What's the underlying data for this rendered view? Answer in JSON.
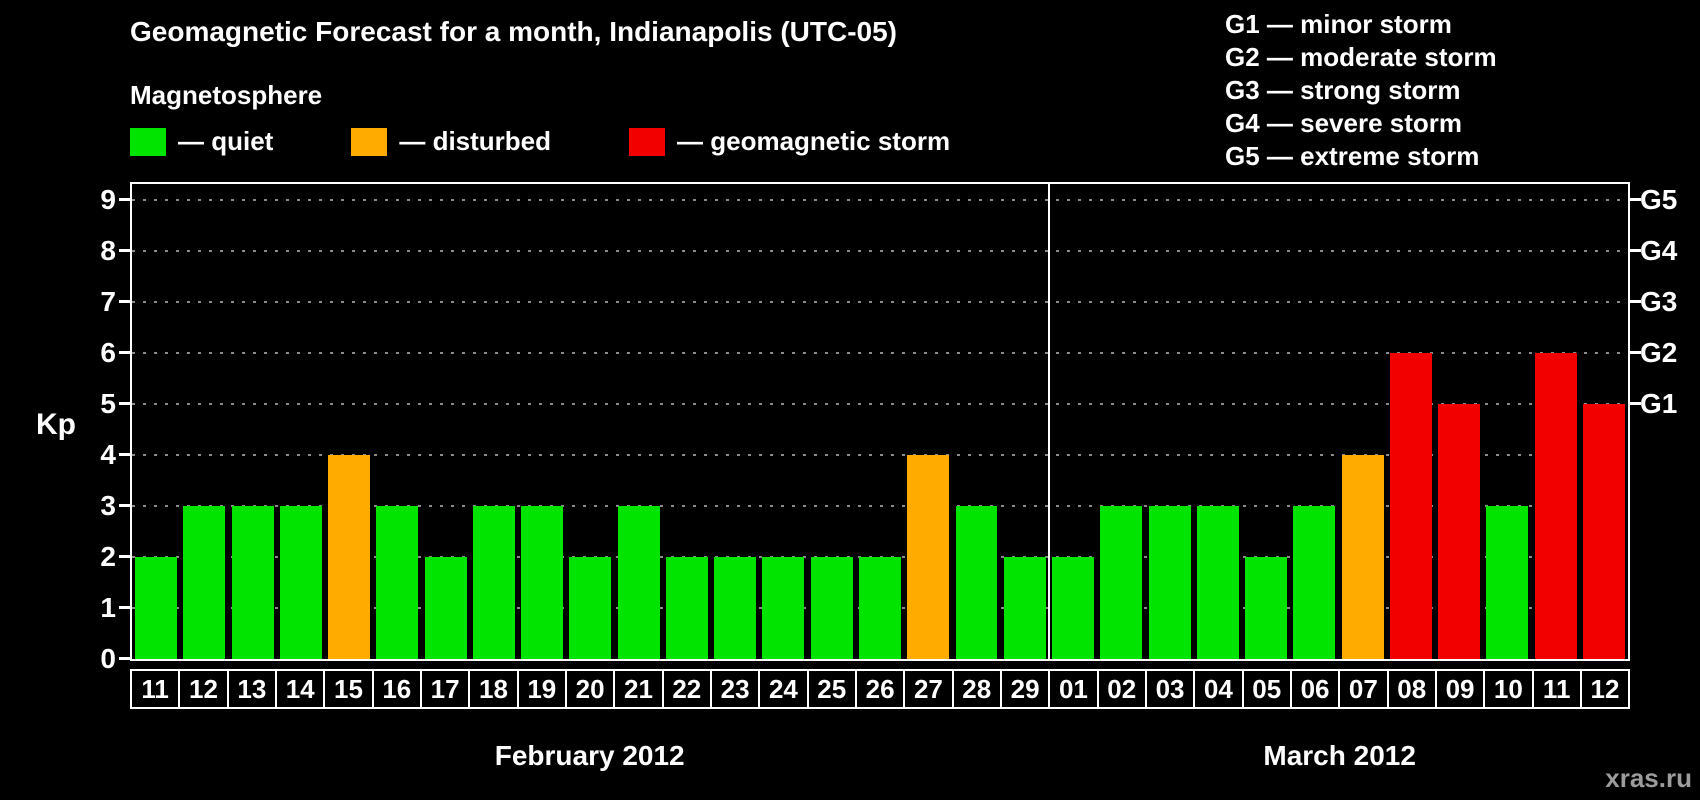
{
  "title": "Geomagnetic Forecast for a month, Indianapolis (UTC-05)",
  "subtitle": "Magnetosphere",
  "legend": {
    "items": [
      {
        "status": "quiet",
        "label": "— quiet",
        "color": "#00e400"
      },
      {
        "status": "disturbed",
        "label": "— disturbed",
        "color": "#ffab00"
      },
      {
        "status": "storm",
        "label": "— geomagnetic storm",
        "color": "#f20000"
      }
    ]
  },
  "g_legend": [
    "G1 — minor storm",
    "G2 — moderate storm",
    "G3 — strong storm",
    "G4 — severe storm",
    "G5 — extreme storm"
  ],
  "watermark": "xras.ru",
  "chart_data": {
    "type": "bar",
    "title": "Geomagnetic Forecast for a month, Indianapolis (UTC-05)",
    "ylabel": "Kp",
    "xlabel": "",
    "ylim": [
      0,
      9
    ],
    "yticks": [
      0,
      1,
      2,
      3,
      4,
      5,
      6,
      7,
      8,
      9
    ],
    "grid": true,
    "legend_position": "top",
    "status_colors": {
      "quiet": "#00e400",
      "disturbed": "#ffab00",
      "storm": "#f20000"
    },
    "right_axis_ticks": [
      {
        "label": "G1",
        "value": 5
      },
      {
        "label": "G2",
        "value": 6
      },
      {
        "label": "G3",
        "value": 7
      },
      {
        "label": "G4",
        "value": 8
      },
      {
        "label": "G5",
        "value": 9
      }
    ],
    "months": [
      {
        "label": "February 2012",
        "days": [
          {
            "day": "11",
            "kp": 2,
            "status": "quiet"
          },
          {
            "day": "12",
            "kp": 3,
            "status": "quiet"
          },
          {
            "day": "13",
            "kp": 3,
            "status": "quiet"
          },
          {
            "day": "14",
            "kp": 3,
            "status": "quiet"
          },
          {
            "day": "15",
            "kp": 4,
            "status": "disturbed"
          },
          {
            "day": "16",
            "kp": 3,
            "status": "quiet"
          },
          {
            "day": "17",
            "kp": 2,
            "status": "quiet"
          },
          {
            "day": "18",
            "kp": 3,
            "status": "quiet"
          },
          {
            "day": "19",
            "kp": 3,
            "status": "quiet"
          },
          {
            "day": "20",
            "kp": 2,
            "status": "quiet"
          },
          {
            "day": "21",
            "kp": 3,
            "status": "quiet"
          },
          {
            "day": "22",
            "kp": 2,
            "status": "quiet"
          },
          {
            "day": "23",
            "kp": 2,
            "status": "quiet"
          },
          {
            "day": "24",
            "kp": 2,
            "status": "quiet"
          },
          {
            "day": "25",
            "kp": 2,
            "status": "quiet"
          },
          {
            "day": "26",
            "kp": 2,
            "status": "quiet"
          },
          {
            "day": "27",
            "kp": 4,
            "status": "disturbed"
          },
          {
            "day": "28",
            "kp": 3,
            "status": "quiet"
          },
          {
            "day": "29",
            "kp": 2,
            "status": "quiet"
          }
        ]
      },
      {
        "label": "March 2012",
        "days": [
          {
            "day": "01",
            "kp": 2,
            "status": "quiet"
          },
          {
            "day": "02",
            "kp": 3,
            "status": "quiet"
          },
          {
            "day": "03",
            "kp": 3,
            "status": "quiet"
          },
          {
            "day": "04",
            "kp": 3,
            "status": "quiet"
          },
          {
            "day": "05",
            "kp": 2,
            "status": "quiet"
          },
          {
            "day": "06",
            "kp": 3,
            "status": "quiet"
          },
          {
            "day": "07",
            "kp": 4,
            "status": "disturbed"
          },
          {
            "day": "08",
            "kp": 6,
            "status": "storm"
          },
          {
            "day": "09",
            "kp": 5,
            "status": "storm"
          },
          {
            "day": "10",
            "kp": 3,
            "status": "quiet"
          },
          {
            "day": "11",
            "kp": 6,
            "status": "storm"
          },
          {
            "day": "12",
            "kp": 5,
            "status": "storm"
          }
        ]
      }
    ]
  }
}
